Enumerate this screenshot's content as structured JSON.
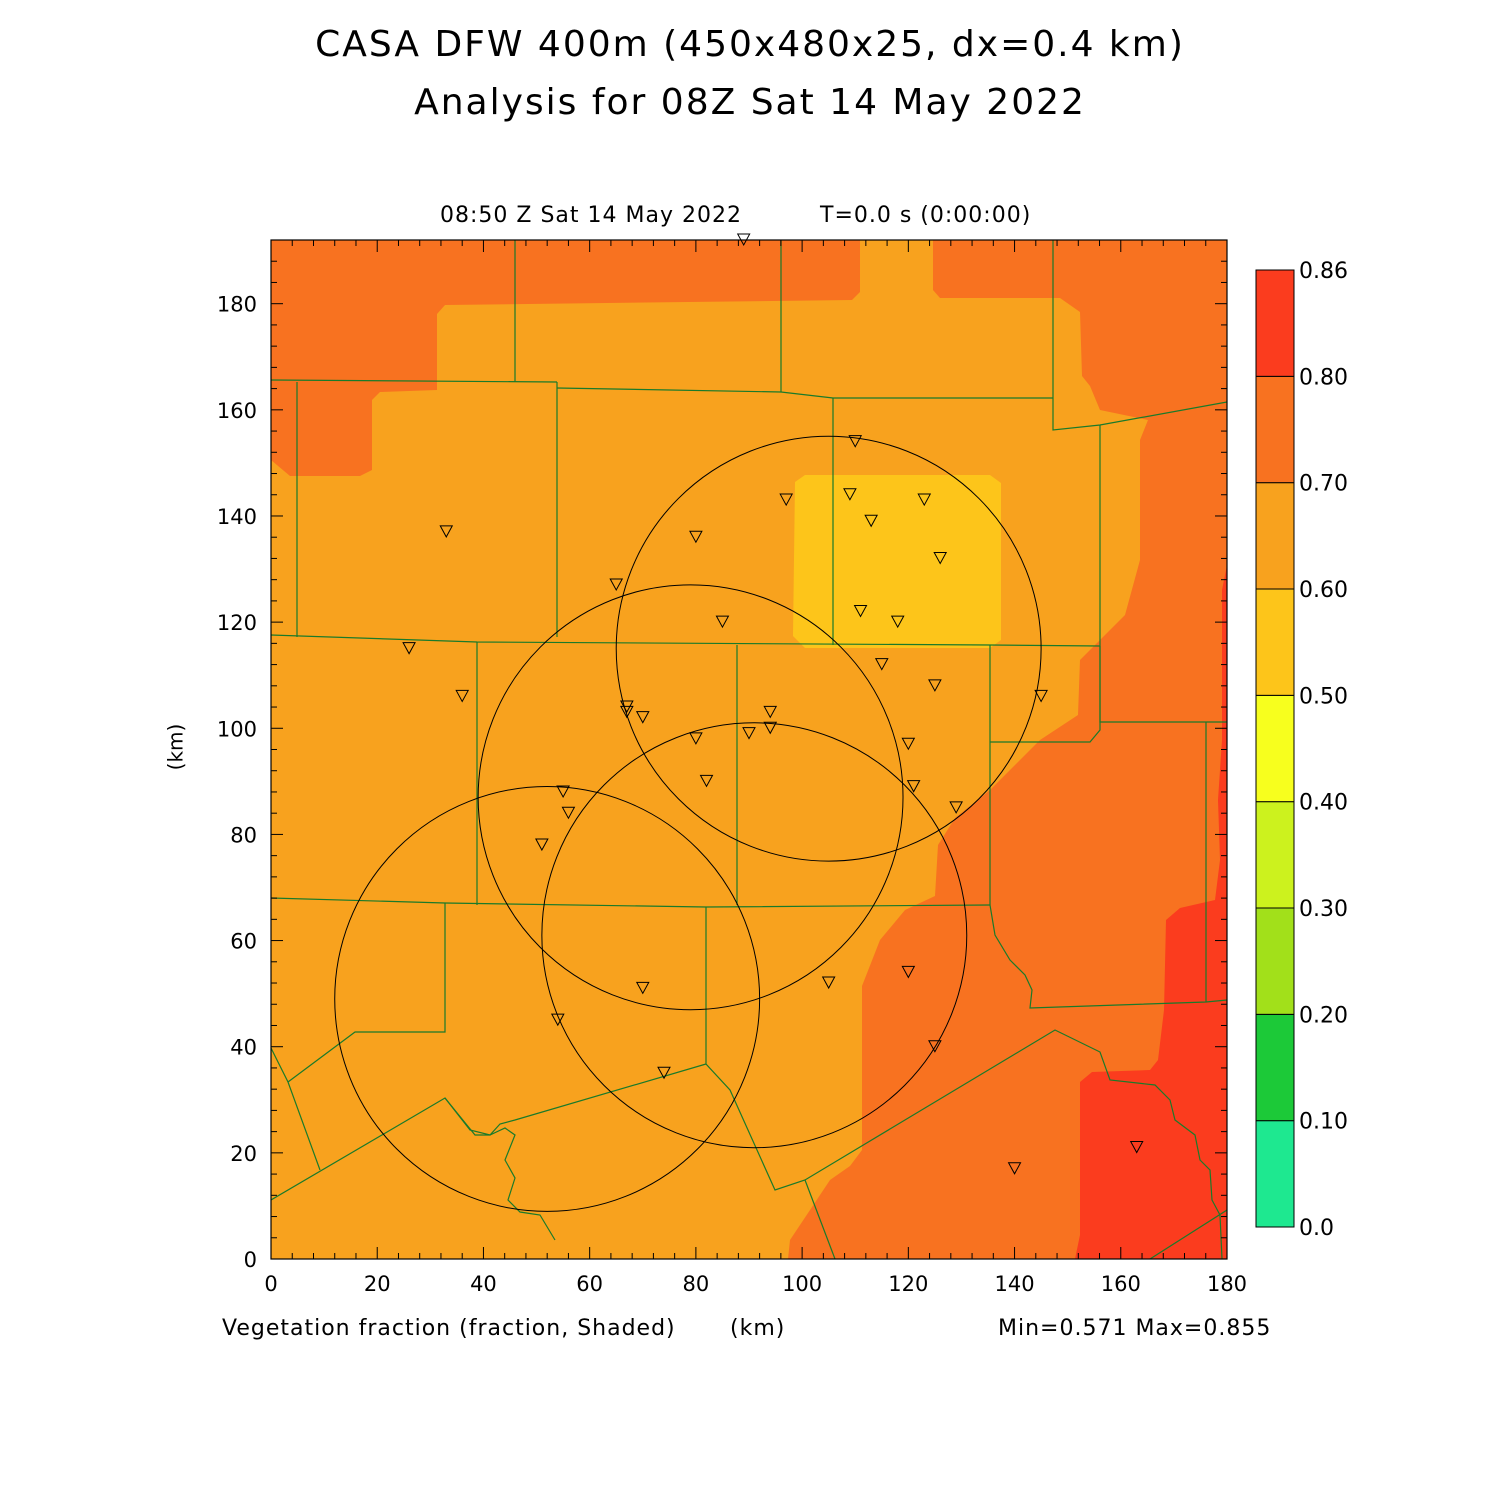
{
  "title": {
    "line1": "CASA DFW 400m (450x480x25, dx=0.4 km)",
    "line2": "Analysis for 08Z Sat 14 May 2022"
  },
  "plot": {
    "valid_time": "08:50 Z Sat 14 May 2022",
    "sim_time": "T=0.0 s (0:00:00)",
    "xlabel": "Vegetation fraction (fraction, Shaded)",
    "xunit": "(km)",
    "ylabel": "(km)",
    "minmax": "Min=0.571 Max=0.855",
    "x_ticks": [
      "0",
      "20",
      "40",
      "60",
      "80",
      "100",
      "120",
      "140",
      "160",
      "180"
    ],
    "y_ticks": [
      "0",
      "20",
      "40",
      "60",
      "80",
      "100",
      "120",
      "140",
      "160",
      "180"
    ],
    "x_range": [
      0,
      180
    ],
    "y_range": [
      0,
      192
    ]
  },
  "colorbar": {
    "labels": [
      "0.0",
      "0.10",
      "0.20",
      "0.30",
      "0.40",
      "0.50",
      "0.60",
      "0.70",
      "0.80",
      "0.86"
    ],
    "colors": [
      "#1ee890",
      "#1cc938",
      "#a2e01a",
      "#ccf21e",
      "#f7ff1e",
      "#fdc51a",
      "#f8a21e",
      "#f87220",
      "#fb3c1e"
    ]
  },
  "radars": [
    {
      "cx": 52,
      "cy": 49,
      "r": 40
    },
    {
      "cx": 91,
      "cy": 61,
      "r": 40
    },
    {
      "cx": 79,
      "cy": 87,
      "r": 40
    },
    {
      "cx": 105,
      "cy": 115,
      "r": 40
    }
  ],
  "stations": [
    [
      89,
      192
    ],
    [
      110,
      154
    ],
    [
      97,
      143
    ],
    [
      109,
      144
    ],
    [
      123,
      143
    ],
    [
      113,
      139
    ],
    [
      80,
      136
    ],
    [
      126,
      132
    ],
    [
      33,
      137
    ],
    [
      65,
      127
    ],
    [
      111,
      122
    ],
    [
      118,
      120
    ],
    [
      85,
      120
    ],
    [
      26,
      115
    ],
    [
      115,
      112
    ],
    [
      36,
      106
    ],
    [
      125,
      108
    ],
    [
      145,
      106
    ],
    [
      67,
      104
    ],
    [
      67,
      103
    ],
    [
      70,
      102
    ],
    [
      94,
      103
    ],
    [
      90,
      99
    ],
    [
      94,
      100
    ],
    [
      80,
      98
    ],
    [
      120,
      97
    ],
    [
      82,
      90
    ],
    [
      121,
      89
    ],
    [
      55,
      88
    ],
    [
      56,
      84
    ],
    [
      129,
      85
    ],
    [
      51,
      78
    ],
    [
      70,
      51
    ],
    [
      105,
      52
    ],
    [
      120,
      54
    ],
    [
      54,
      45
    ],
    [
      125,
      40
    ],
    [
      74,
      35
    ],
    [
      140,
      17
    ],
    [
      163,
      21
    ]
  ]
}
